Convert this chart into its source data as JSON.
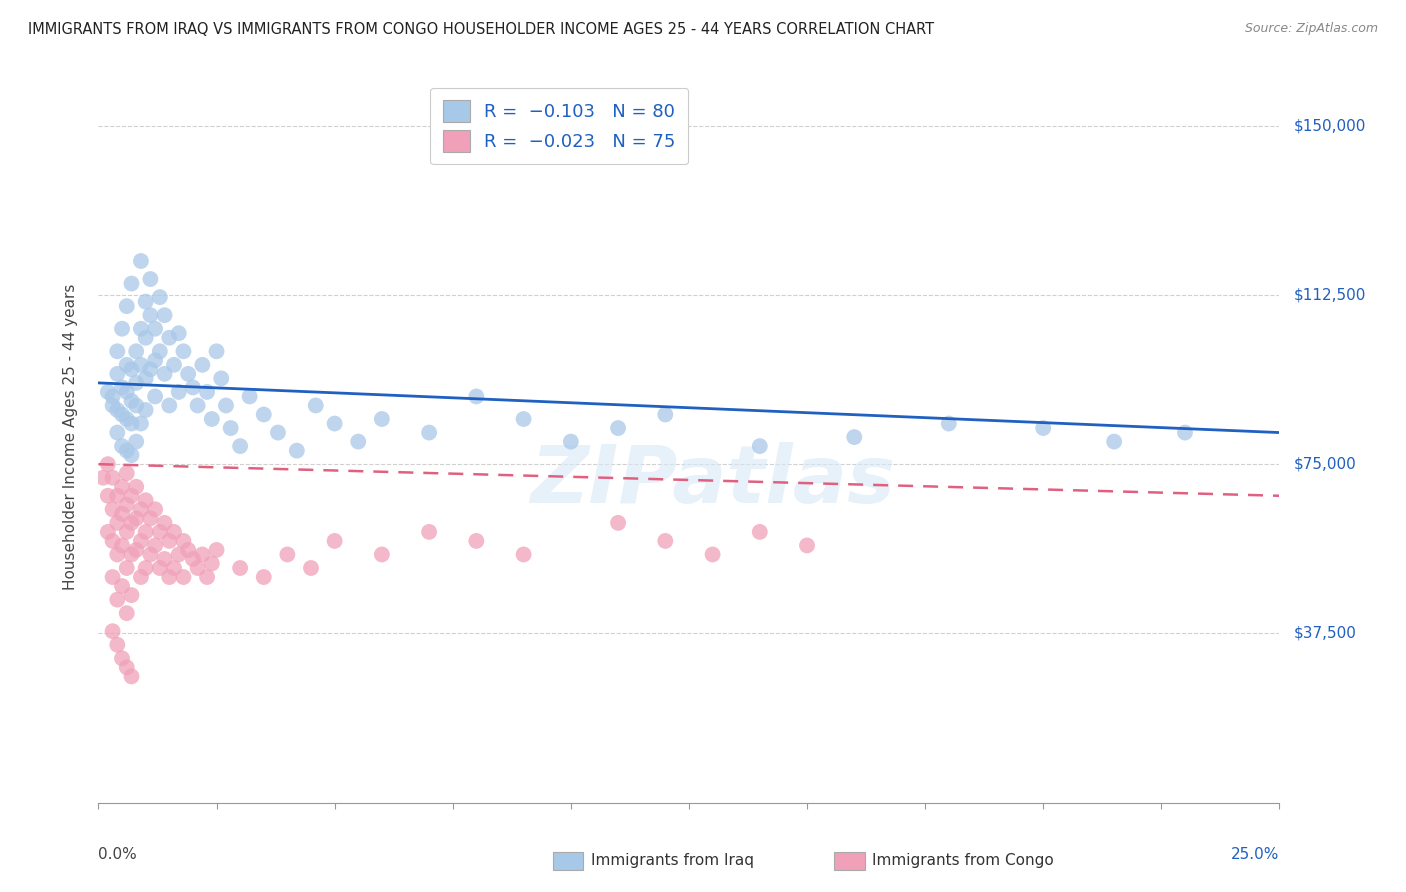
{
  "title": "IMMIGRANTS FROM IRAQ VS IMMIGRANTS FROM CONGO HOUSEHOLDER INCOME AGES 25 - 44 YEARS CORRELATION CHART",
  "source": "Source: ZipAtlas.com",
  "ylabel": "Householder Income Ages 25 - 44 years",
  "yticks": [
    0,
    37500,
    75000,
    112500,
    150000
  ],
  "ytick_labels": [
    "",
    "$37,500",
    "$75,000",
    "$112,500",
    "$150,000"
  ],
  "xlim": [
    0.0,
    0.25
  ],
  "ylim": [
    0,
    162000
  ],
  "iraq_color": "#a8c8e8",
  "congo_color": "#f0a0b8",
  "iraq_line_color": "#2060c0",
  "congo_line_color": "#e06080",
  "background_color": "#ffffff",
  "grid_color": "#d0d0d0",
  "watermark": "ZIPatlas",
  "legend_iraq_label": "R =  -0.103   N = 80",
  "legend_congo_label": "R =  -0.023   N = 75",
  "iraq_scatter_x": [
    0.002,
    0.003,
    0.003,
    0.004,
    0.004,
    0.004,
    0.004,
    0.005,
    0.005,
    0.005,
    0.005,
    0.006,
    0.006,
    0.006,
    0.006,
    0.006,
    0.007,
    0.007,
    0.007,
    0.007,
    0.007,
    0.008,
    0.008,
    0.008,
    0.008,
    0.009,
    0.009,
    0.009,
    0.009,
    0.01,
    0.01,
    0.01,
    0.01,
    0.011,
    0.011,
    0.011,
    0.012,
    0.012,
    0.012,
    0.013,
    0.013,
    0.014,
    0.014,
    0.015,
    0.015,
    0.016,
    0.017,
    0.017,
    0.018,
    0.019,
    0.02,
    0.021,
    0.022,
    0.023,
    0.024,
    0.025,
    0.026,
    0.027,
    0.028,
    0.03,
    0.032,
    0.035,
    0.038,
    0.042,
    0.046,
    0.05,
    0.055,
    0.06,
    0.07,
    0.08,
    0.09,
    0.1,
    0.11,
    0.12,
    0.14,
    0.16,
    0.18,
    0.2,
    0.215,
    0.23
  ],
  "iraq_scatter_y": [
    91000,
    90000,
    88000,
    95000,
    87000,
    100000,
    82000,
    92000,
    86000,
    79000,
    105000,
    97000,
    91000,
    85000,
    78000,
    110000,
    96000,
    89000,
    84000,
    77000,
    115000,
    100000,
    93000,
    88000,
    80000,
    120000,
    105000,
    97000,
    84000,
    111000,
    103000,
    94000,
    87000,
    116000,
    108000,
    96000,
    105000,
    98000,
    90000,
    112000,
    100000,
    108000,
    95000,
    103000,
    88000,
    97000,
    104000,
    91000,
    100000,
    95000,
    92000,
    88000,
    97000,
    91000,
    85000,
    100000,
    94000,
    88000,
    83000,
    79000,
    90000,
    86000,
    82000,
    78000,
    88000,
    84000,
    80000,
    85000,
    82000,
    90000,
    85000,
    80000,
    83000,
    86000,
    79000,
    81000,
    84000,
    83000,
    80000,
    82000
  ],
  "congo_scatter_x": [
    0.001,
    0.002,
    0.002,
    0.002,
    0.003,
    0.003,
    0.003,
    0.003,
    0.004,
    0.004,
    0.004,
    0.004,
    0.005,
    0.005,
    0.005,
    0.005,
    0.006,
    0.006,
    0.006,
    0.006,
    0.006,
    0.007,
    0.007,
    0.007,
    0.007,
    0.008,
    0.008,
    0.008,
    0.009,
    0.009,
    0.009,
    0.01,
    0.01,
    0.01,
    0.011,
    0.011,
    0.012,
    0.012,
    0.013,
    0.013,
    0.014,
    0.014,
    0.015,
    0.015,
    0.016,
    0.016,
    0.017,
    0.018,
    0.018,
    0.019,
    0.02,
    0.021,
    0.022,
    0.023,
    0.024,
    0.025,
    0.03,
    0.035,
    0.04,
    0.045,
    0.05,
    0.06,
    0.07,
    0.08,
    0.09,
    0.11,
    0.12,
    0.13,
    0.14,
    0.15,
    0.003,
    0.004,
    0.005,
    0.006,
    0.007
  ],
  "congo_scatter_y": [
    72000,
    68000,
    60000,
    75000,
    65000,
    58000,
    72000,
    50000,
    68000,
    62000,
    55000,
    45000,
    70000,
    64000,
    57000,
    48000,
    73000,
    66000,
    60000,
    52000,
    42000,
    68000,
    62000,
    55000,
    46000,
    70000,
    63000,
    56000,
    65000,
    58000,
    50000,
    67000,
    60000,
    52000,
    63000,
    55000,
    65000,
    57000,
    60000,
    52000,
    62000,
    54000,
    58000,
    50000,
    60000,
    52000,
    55000,
    58000,
    50000,
    56000,
    54000,
    52000,
    55000,
    50000,
    53000,
    56000,
    52000,
    50000,
    55000,
    52000,
    58000,
    55000,
    60000,
    58000,
    55000,
    62000,
    58000,
    55000,
    60000,
    57000,
    38000,
    35000,
    32000,
    30000,
    28000
  ]
}
